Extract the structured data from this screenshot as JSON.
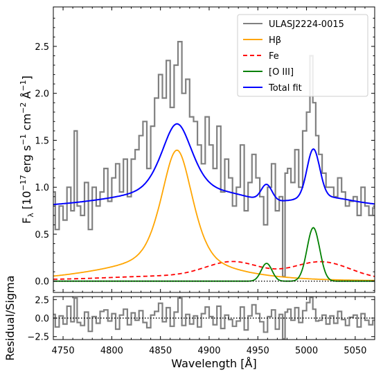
{
  "chart_data": {
    "type": "line",
    "xlabel": "Wavelength [Å]",
    "xlim": [
      4740,
      5070
    ],
    "x_ticks": [
      "4750",
      "4800",
      "4850",
      "4900",
      "4950",
      "5000",
      "5050"
    ],
    "top_panel": {
      "ylabel": "F_λ [10^-17 erg s^-1 cm^-2 Å^-1]",
      "ylabel_parts": {
        "main": "F",
        "sub": "λ",
        "open": " [10",
        "e1": "−17",
        "t1": "erg s",
        "e2": "−1",
        "t2": " cm",
        "e3": "−2",
        "t3": " Å",
        "e4": "−1",
        "close": "]"
      },
      "ylim": [
        -0.12,
        2.92
      ],
      "y_ticks": [
        "0.0",
        "0.5",
        "1.0",
        "1.5",
        "2.0",
        "2.5"
      ],
      "legend_position": "top-right",
      "legend": [
        {
          "label": "ULASJ2224-0015",
          "color": "#808080"
        },
        {
          "label": "Hβ",
          "color": "#ffa500"
        },
        {
          "label": "Fe",
          "color": "#ff0000"
        },
        {
          "label": "[O III]",
          "color": "#008000"
        },
        {
          "label": "Total fit",
          "color": "#0000ff"
        }
      ],
      "data_spectrum": {
        "name": "ULASJ2224-0015",
        "color": "#808080",
        "x": [
          4740,
          4744,
          4748,
          4752,
          4756,
          4760,
          4763,
          4766,
          4770,
          4774,
          4778,
          4782,
          4786,
          4790,
          4794,
          4798,
          4802,
          4806,
          4810,
          4814,
          4818,
          4822,
          4826,
          4830,
          4834,
          4838,
          4842,
          4846,
          4850,
          4854,
          4858,
          4862,
          4866,
          4870,
          4874,
          4878,
          4882,
          4886,
          4890,
          4894,
          4898,
          4902,
          4906,
          4910,
          4914,
          4918,
          4922,
          4926,
          4930,
          4934,
          4938,
          4942,
          4946,
          4950,
          4954,
          4958,
          4962,
          4966,
          4970,
          4974,
          4977,
          4979,
          4982,
          4986,
          4990,
          4994,
          4998,
          5002,
          5005,
          5008,
          5011,
          5014,
          5018,
          5022,
          5026,
          5030,
          5034,
          5038,
          5042,
          5046,
          5050,
          5054,
          5058,
          5062,
          5066,
          5070
        ],
        "y": [
          0.95,
          0.55,
          0.8,
          0.65,
          1.0,
          0.75,
          1.6,
          0.8,
          0.7,
          1.05,
          0.55,
          1.0,
          0.8,
          0.95,
          1.2,
          0.85,
          1.1,
          1.25,
          0.95,
          1.3,
          0.9,
          1.3,
          1.4,
          1.55,
          1.7,
          1.2,
          1.65,
          1.95,
          2.2,
          1.95,
          2.35,
          1.85,
          2.3,
          2.55,
          2.0,
          2.15,
          1.75,
          1.7,
          1.45,
          1.25,
          1.75,
          1.45,
          1.2,
          1.65,
          0.95,
          1.3,
          1.1,
          0.8,
          1.0,
          1.45,
          0.75,
          1.05,
          1.35,
          1.1,
          0.9,
          0.6,
          1.0,
          1.25,
          0.75,
          0.9,
          0.05,
          1.15,
          1.2,
          1.05,
          1.4,
          1.0,
          1.6,
          1.8,
          2.4,
          1.9,
          1.55,
          1.35,
          1.15,
          1.0,
          1.0,
          0.9,
          1.1,
          0.95,
          0.8,
          0.85,
          0.9,
          0.7,
          1.0,
          0.8,
          0.7,
          0.78
        ]
      },
      "fit_params": {
        "hbeta": {
          "center": 4867,
          "amp": 1.28,
          "fwhm": 38,
          "wing_amp": 0.12,
          "wing_sigma": 70
        },
        "fe_bumps": [
          {
            "center": 4925,
            "amp": 0.17,
            "sigma": 28
          },
          {
            "center": 5015,
            "amp": 0.19,
            "sigma": 30
          },
          {
            "center": 4860,
            "amp": 0.04,
            "sigma": 60
          }
        ],
        "oiii": [
          {
            "center": 4959,
            "amp": 0.19,
            "sigma": 5.5
          },
          {
            "center": 5007,
            "amp": 0.57,
            "sigma": 6.5
          }
        ],
        "continuum": {
          "at_4740": 0.78,
          "at_5070": 0.8
        }
      },
      "zero_line": {
        "style": "dotted",
        "color": "#000000"
      }
    },
    "bottom_panel": {
      "ylabel": "Residual/Sigma",
      "ylim": [
        -2.9,
        2.9
      ],
      "y_ticks": [
        "2.5",
        "0.0",
        "−2.5"
      ],
      "residuals": [
        0.5,
        -1.2,
        0.3,
        -0.8,
        1.6,
        -0.5,
        2.7,
        -0.6,
        -1.0,
        0.8,
        -1.8,
        0.2,
        -0.7,
        0.9,
        1.1,
        -0.4,
        0.6,
        -1.5,
        0.4,
        1.2,
        -0.9,
        0.7,
        -0.3,
        1.0,
        -0.6,
        -1.3,
        0.4,
        0.9,
        2.0,
        -0.5,
        1.4,
        -1.1,
        0.8,
        2.7,
        -1.0,
        0.5,
        -0.8,
        0.3,
        -1.2,
        0.6,
        1.5,
        0.2,
        -0.9,
        1.6,
        -1.4,
        0.4,
        -0.2,
        -1.1,
        -0.4,
        1.5,
        -1.6,
        0.3,
        1.8,
        0.6,
        -0.5,
        -1.9,
        0.2,
        1.1,
        -1.5,
        0.5,
        -2.8,
        0.8,
        1.2,
        -0.3,
        1.4,
        -0.6,
        1.0,
        2.1,
        2.8,
        1.2,
        -0.4,
        -0.3,
        0.4,
        -0.8,
        0.3,
        -0.7,
        0.9,
        -0.2,
        -1.0,
        0.1,
        0.4,
        -1.2,
        0.6,
        -0.3,
        -0.9,
        -0.3
      ]
    }
  }
}
